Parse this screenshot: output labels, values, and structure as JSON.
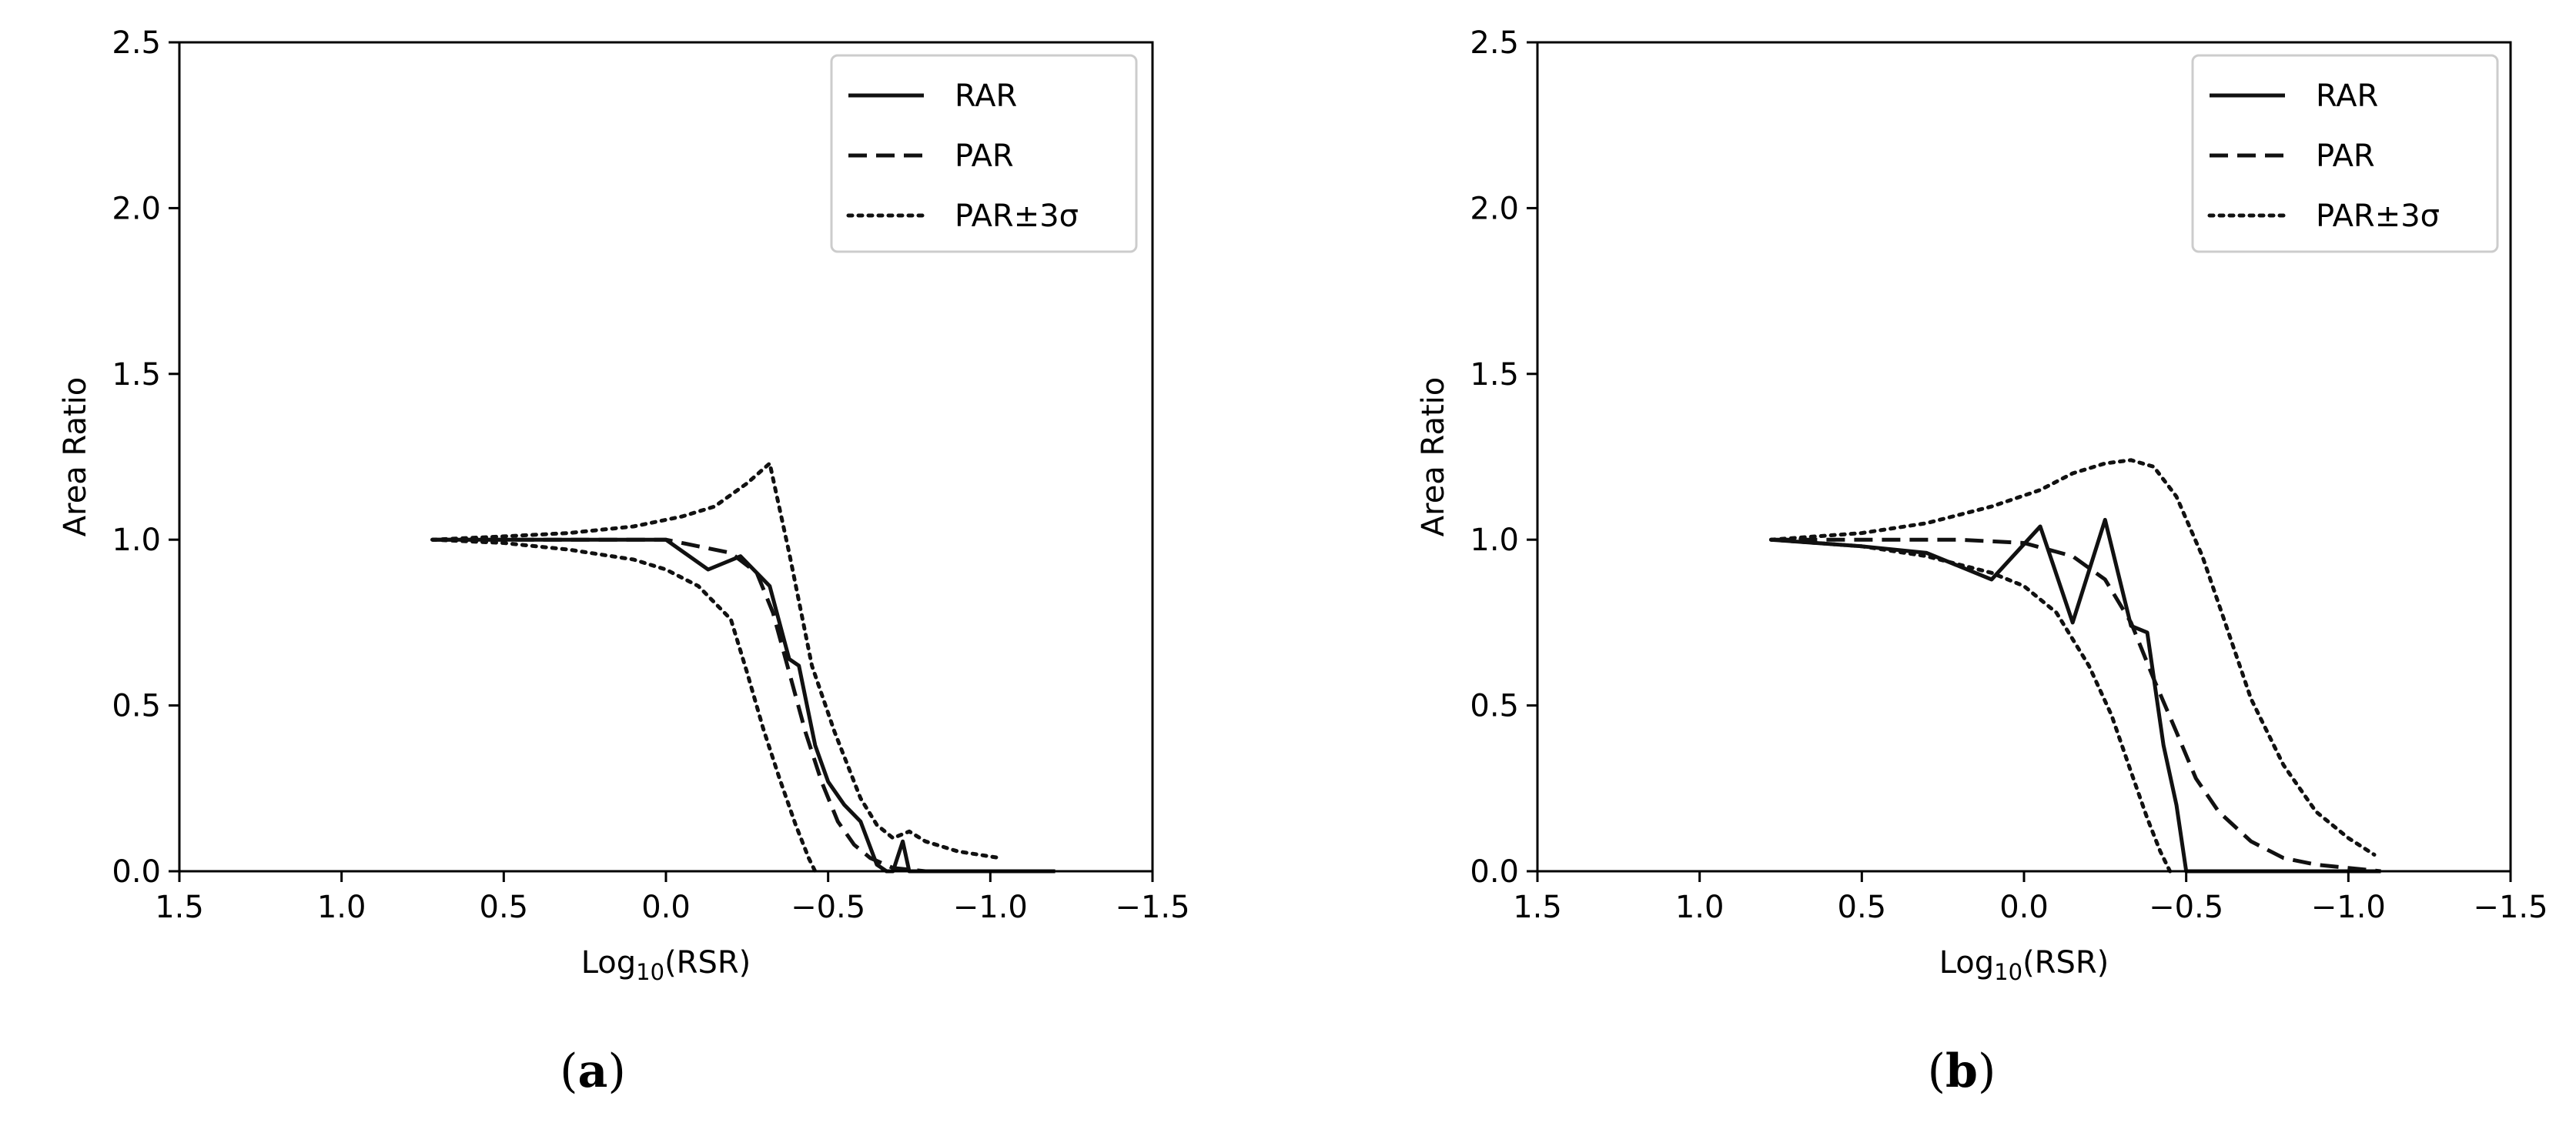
{
  "chart_data": [
    {
      "type": "line",
      "panel_label": "(a)",
      "panel_label_letter": "a",
      "xlabel": "Log10(RSR)",
      "xlabel_base": "Log",
      "xlabel_sub": "10",
      "xlabel_rest": "(RSR)",
      "ylabel": "Area Ratio",
      "xlim": [
        1.5,
        -1.5
      ],
      "ylim": [
        0,
        2.5
      ],
      "xticks": [
        1.5,
        1.0,
        0.5,
        0.0,
        -0.5,
        -1.0,
        -1.5
      ],
      "xtick_labels": [
        "1.5",
        "1.0",
        "0.5",
        "0.0",
        "−0.5",
        "−1.0",
        "−1.5"
      ],
      "yticks": [
        0.0,
        0.5,
        1.0,
        1.5,
        2.0,
        2.5
      ],
      "ytick_labels": [
        "0.0",
        "0.5",
        "1.0",
        "1.5",
        "2.0",
        "2.5"
      ],
      "grid": false,
      "legend_position": "top-right",
      "legend": [
        "RAR",
        "PAR",
        "PAR±3σ"
      ],
      "series": [
        {
          "name": "RAR",
          "style": "solid",
          "x": [
            0.72,
            0.5,
            0.2,
            0.0,
            -0.13,
            -0.23,
            -0.32,
            -0.38,
            -0.41,
            -0.46,
            -0.5,
            -0.55,
            -0.6,
            -0.65,
            -0.68,
            -0.7,
            -0.73,
            -0.75,
            -0.8,
            -1.0,
            -1.2
          ],
          "y": [
            1.0,
            1.0,
            1.0,
            1.0,
            0.91,
            0.95,
            0.86,
            0.64,
            0.62,
            0.38,
            0.27,
            0.2,
            0.15,
            0.02,
            0.0,
            0.0,
            0.09,
            0.0,
            0.0,
            0.0,
            0.0
          ]
        },
        {
          "name": "PAR",
          "style": "dashed",
          "x": [
            0.72,
            0.5,
            0.2,
            0.0,
            -0.1,
            -0.2,
            -0.28,
            -0.33,
            -0.38,
            -0.43,
            -0.48,
            -0.53,
            -0.58,
            -0.63,
            -0.7,
            -0.8,
            -1.0,
            -1.2
          ],
          "y": [
            1.0,
            1.0,
            1.0,
            1.0,
            0.98,
            0.96,
            0.9,
            0.78,
            0.6,
            0.42,
            0.27,
            0.15,
            0.08,
            0.04,
            0.01,
            0.0,
            0.0,
            0.0
          ]
        },
        {
          "name": "PAR±3σ (upper)",
          "style": "dotted",
          "x": [
            0.72,
            0.5,
            0.3,
            0.1,
            -0.05,
            -0.15,
            -0.25,
            -0.32,
            -0.38,
            -0.45,
            -0.52,
            -0.6,
            -0.65,
            -0.7,
            -0.75,
            -0.8,
            -0.9,
            -1.03
          ],
          "y": [
            1.0,
            1.01,
            1.02,
            1.04,
            1.07,
            1.1,
            1.17,
            1.23,
            0.96,
            0.62,
            0.42,
            0.22,
            0.14,
            0.1,
            0.12,
            0.09,
            0.06,
            0.04
          ]
        },
        {
          "name": "PAR±3σ (lower)",
          "style": "dotted",
          "x": [
            0.72,
            0.5,
            0.3,
            0.1,
            0.0,
            -0.1,
            -0.2,
            -0.25,
            -0.3,
            -0.35,
            -0.4,
            -0.44,
            -0.46
          ],
          "y": [
            1.0,
            0.99,
            0.97,
            0.94,
            0.91,
            0.86,
            0.76,
            0.6,
            0.43,
            0.28,
            0.14,
            0.04,
            0.0
          ]
        }
      ]
    },
    {
      "type": "line",
      "panel_label": "(b)",
      "panel_label_letter": "b",
      "xlabel": "Log10(RSR)",
      "xlabel_base": "Log",
      "xlabel_sub": "10",
      "xlabel_rest": "(RSR)",
      "ylabel": "Area Ratio",
      "xlim": [
        1.5,
        -1.5
      ],
      "ylim": [
        0,
        2.5
      ],
      "xticks": [
        1.5,
        1.0,
        0.5,
        0.0,
        -0.5,
        -1.0,
        -1.5
      ],
      "xtick_labels": [
        "1.5",
        "1.0",
        "0.5",
        "0.0",
        "−0.5",
        "−1.0",
        "−1.5"
      ],
      "yticks": [
        0.0,
        0.5,
        1.0,
        1.5,
        2.0,
        2.5
      ],
      "ytick_labels": [
        "0.0",
        "0.5",
        "1.0",
        "1.5",
        "2.0",
        "2.5"
      ],
      "grid": false,
      "legend_position": "top-right",
      "legend": [
        "RAR",
        "PAR",
        "PAR±3σ"
      ],
      "series": [
        {
          "name": "RAR",
          "style": "solid",
          "x": [
            0.78,
            0.5,
            0.3,
            0.1,
            -0.05,
            -0.15,
            -0.25,
            -0.33,
            -0.38,
            -0.43,
            -0.47,
            -0.5,
            -0.6,
            -0.8,
            -1.1
          ],
          "y": [
            1.0,
            0.98,
            0.96,
            0.88,
            1.04,
            0.75,
            1.06,
            0.74,
            0.72,
            0.38,
            0.2,
            0.0,
            0.0,
            0.0,
            0.0
          ]
        },
        {
          "name": "PAR",
          "style": "dashed",
          "x": [
            0.78,
            0.5,
            0.2,
            0.0,
            -0.15,
            -0.25,
            -0.33,
            -0.4,
            -0.47,
            -0.53,
            -0.6,
            -0.7,
            -0.8,
            -0.9,
            -1.0,
            -1.1
          ],
          "y": [
            1.0,
            1.0,
            1.0,
            0.99,
            0.95,
            0.88,
            0.75,
            0.58,
            0.42,
            0.28,
            0.18,
            0.09,
            0.04,
            0.02,
            0.01,
            0.0
          ]
        },
        {
          "name": "PAR±3σ (upper)",
          "style": "dotted",
          "x": [
            0.78,
            0.5,
            0.3,
            0.1,
            -0.05,
            -0.15,
            -0.25,
            -0.33,
            -0.4,
            -0.47,
            -0.55,
            -0.62,
            -0.7,
            -0.8,
            -0.9,
            -1.0,
            -1.08
          ],
          "y": [
            1.0,
            1.02,
            1.05,
            1.1,
            1.15,
            1.2,
            1.23,
            1.24,
            1.22,
            1.13,
            0.95,
            0.75,
            0.52,
            0.32,
            0.18,
            0.1,
            0.05
          ]
        },
        {
          "name": "PAR±3σ (lower)",
          "style": "dotted",
          "x": [
            0.78,
            0.5,
            0.3,
            0.1,
            0.0,
            -0.1,
            -0.2,
            -0.27,
            -0.33,
            -0.38,
            -0.42,
            -0.45
          ],
          "y": [
            1.0,
            0.98,
            0.95,
            0.9,
            0.86,
            0.78,
            0.62,
            0.47,
            0.3,
            0.16,
            0.06,
            0.0
          ]
        }
      ]
    }
  ]
}
